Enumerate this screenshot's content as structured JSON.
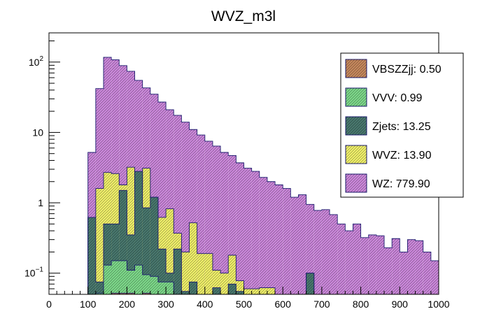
{
  "chart_data": {
    "type": "stacked-histogram",
    "title": "WVZ_m3l",
    "xlabel": "",
    "ylabel": "",
    "x_range": [
      0,
      1000
    ],
    "y_scale": "log",
    "y_range": [
      0.05,
      260
    ],
    "bin_width": 20,
    "x_ticks": [
      "0",
      "100",
      "200",
      "300",
      "400",
      "500",
      "600",
      "700",
      "800",
      "900",
      "1000"
    ],
    "y_ticks": [
      {
        "value": 0.1,
        "base": "10",
        "exp": "−1"
      },
      {
        "value": 1,
        "label": "1"
      },
      {
        "value": 10,
        "label": "10"
      },
      {
        "value": 100,
        "base": "10",
        "exp": "2"
      }
    ],
    "stack_cumulative_tops": {
      "VBSZZjj": [
        0,
        0,
        0,
        0,
        0,
        0,
        0,
        0,
        0.052,
        0.052,
        0.052,
        0,
        0.052,
        0,
        0,
        0,
        0,
        0,
        0,
        0,
        0,
        0,
        0,
        0,
        0,
        0,
        0,
        0,
        0,
        0,
        0,
        0,
        0,
        0,
        0,
        0,
        0,
        0,
        0,
        0,
        0,
        0,
        0,
        0,
        0,
        0,
        0,
        0,
        0,
        0
      ],
      "VVV": [
        0,
        0,
        0,
        0,
        0,
        0,
        0.052,
        0.13,
        0.15,
        0.15,
        0.11,
        0.13,
        0.095,
        0.09,
        0.075,
        0.075,
        0.05,
        0,
        0,
        0,
        0,
        0,
        0,
        0,
        0,
        0,
        0,
        0,
        0,
        0,
        0,
        0,
        0,
        0,
        0,
        0,
        0,
        0,
        0,
        0,
        0,
        0,
        0,
        0,
        0,
        0,
        0,
        0,
        0,
        0
      ],
      "Zjets": [
        0,
        0,
        0,
        0,
        0,
        0.62,
        0.075,
        0.5,
        0.5,
        1.5,
        0.35,
        2.8,
        0.85,
        1.2,
        0.22,
        0.1,
        0.22,
        0.055,
        0.075,
        0.05,
        0.05,
        0.062,
        0.05,
        0.07,
        0.055,
        0.05,
        0.05,
        0.05,
        0.05,
        0.05,
        0.05,
        0.05,
        0.05,
        0.1,
        0.05,
        0.05,
        0.05,
        0.05,
        0.05,
        0.05,
        0.05,
        0.05,
        0.05,
        0.05,
        0.05,
        0.05,
        0.05,
        0.05,
        0.05,
        0.05
      ],
      "WVZ": [
        0,
        0,
        0,
        0,
        0,
        0.62,
        1.6,
        2.7,
        2.6,
        1.8,
        3.2,
        1.6,
        3.1,
        1.2,
        0.62,
        0.82,
        0.37,
        0.2,
        0.52,
        0.19,
        0.19,
        0.11,
        0.1,
        0.18,
        0.078,
        0.06,
        0.06,
        0.062,
        0.062,
        0.05,
        0.05,
        0.05,
        0.05,
        0.1,
        0.05,
        0.05,
        0.05,
        0.05,
        0.05,
        0.05,
        0.05,
        0.05,
        0.05,
        0.05,
        0.05,
        0.05,
        0.05,
        0.05,
        0.05,
        0.05
      ],
      "WZ": [
        0,
        0,
        0,
        0,
        0,
        5.2,
        42,
        117,
        108,
        89,
        74,
        55,
        43,
        35,
        27,
        21,
        17.5,
        14,
        11,
        9.2,
        7.5,
        6.4,
        5.2,
        4.7,
        3.7,
        3.1,
        2.8,
        2.3,
        2,
        1.8,
        1.6,
        1.2,
        1.3,
        0.95,
        0.78,
        0.8,
        0.68,
        0.5,
        0.4,
        0.5,
        0.32,
        0.35,
        0.34,
        0.23,
        0.31,
        0.2,
        0.3,
        0.29,
        0.2,
        0.15
      ]
    },
    "legend_position": "top-right",
    "legend": [
      {
        "key": "VBSZZjj",
        "label": "VBSZZjj: 0.50",
        "color": "#c98a5e"
      },
      {
        "key": "VVV",
        "label": "VVV: 0.99",
        "color": "#7fdc8c"
      },
      {
        "key": "Zjets",
        "label": "Zjets: 13.25",
        "color": "#4a7a70"
      },
      {
        "key": "WVZ",
        "label": "WVZ: 13.90",
        "color": "#f4f46c"
      },
      {
        "key": "WZ",
        "label": "WZ: 779.90",
        "color": "#cf8adf"
      }
    ]
  }
}
